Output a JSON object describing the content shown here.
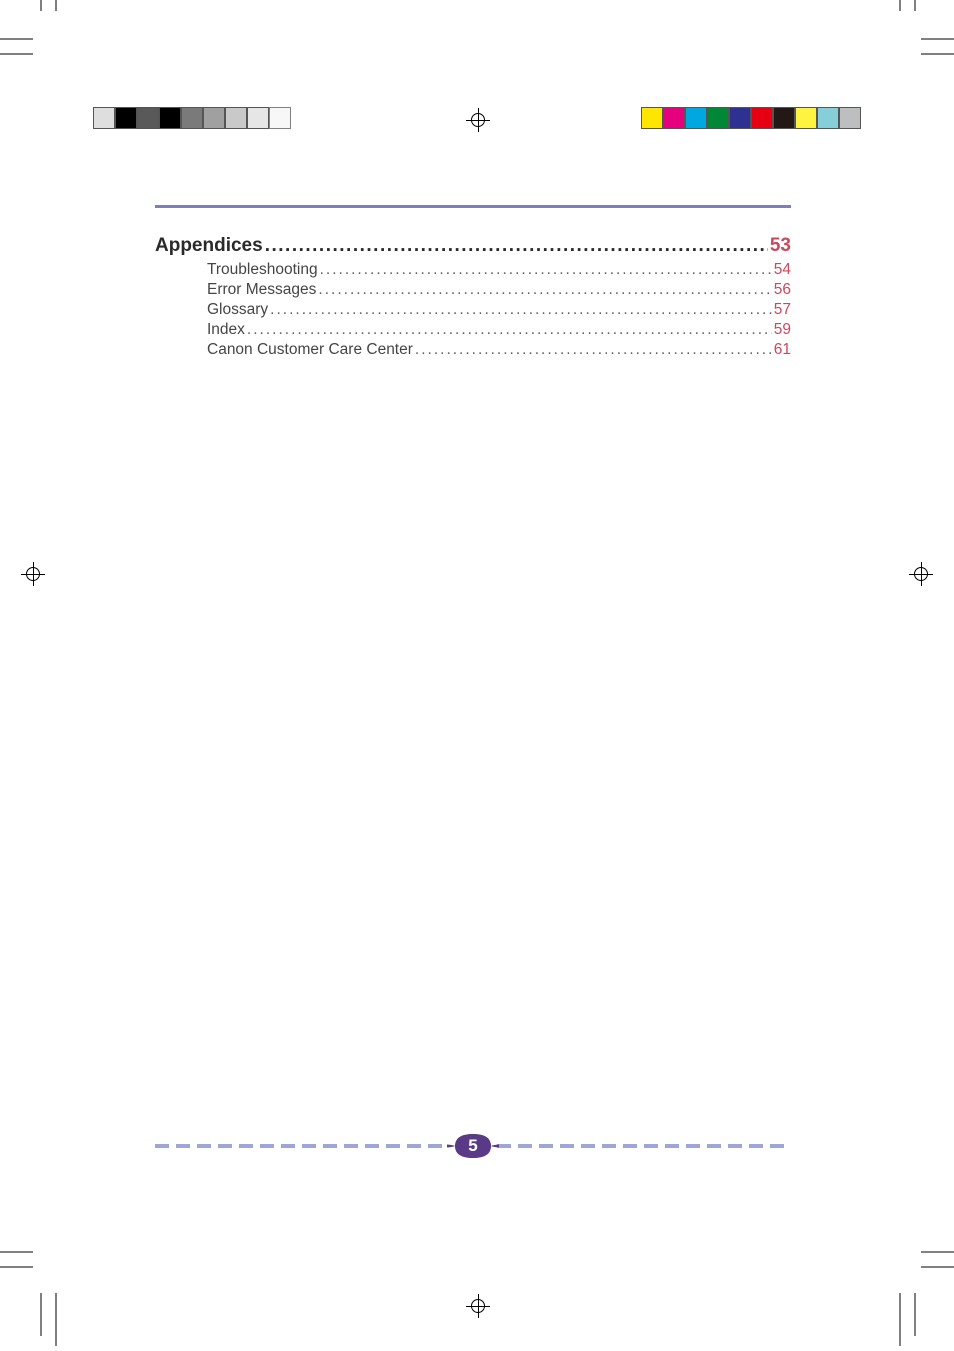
{
  "colorbars": {
    "left": [
      "#dedede",
      "#000000",
      "#595959",
      "#000000",
      "#7a7a7a",
      "#a0a0a0",
      "#c9c9c9",
      "#e6e6e6",
      "#f7f7f7"
    ],
    "right": [
      "#ffe600",
      "#e5007d",
      "#00a7e0",
      "#008837",
      "#2e3192",
      "#e60012",
      "#231815",
      "#fff342",
      "#86cfd9",
      "#bcbec0"
    ]
  },
  "header_rule_color": "#7b7fc2",
  "toc": {
    "section": {
      "title": "Appendices",
      "page": 53
    },
    "items": [
      {
        "title": "Troubleshooting",
        "page": 54
      },
      {
        "title": "Error Messages",
        "page": 56
      },
      {
        "title": "Glossary",
        "page": 57
      },
      {
        "title": "Index",
        "page": 59
      },
      {
        "title": "Canon Customer Care Center",
        "page": 61
      }
    ]
  },
  "page_number": 5,
  "page_badge_color": "#5a3a86",
  "footer_dash_color": "#9fa5d6"
}
